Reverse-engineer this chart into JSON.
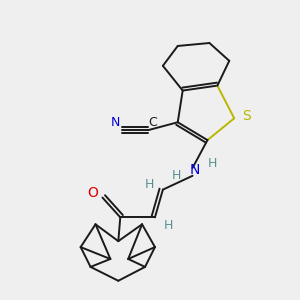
{
  "background_color": "#efefef",
  "figsize": [
    3.0,
    3.0
  ],
  "dpi": 100,
  "colors": {
    "bond": "#1a1a1a",
    "S": "#b8b800",
    "N": "#0000dd",
    "O": "#dd0000",
    "H": "#5a9090",
    "C": "#1a1a1a"
  },
  "lw": 1.4
}
